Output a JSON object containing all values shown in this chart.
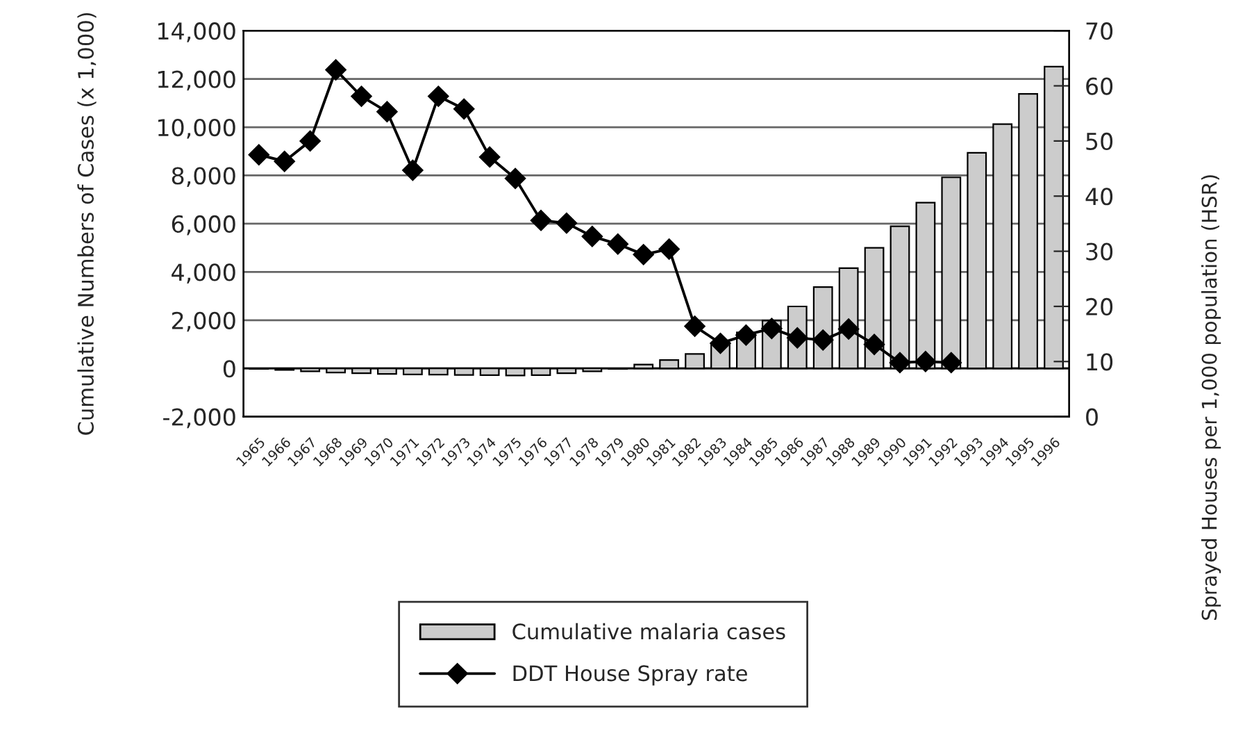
{
  "chart_data": {
    "type": "bar",
    "ylabel": "Cumulative Numbers of Cases (x 1,000)",
    "y2label": "Sprayed Houses per 1,000 population (HSR)",
    "categories": [
      "1965",
      "1966",
      "1967",
      "1968",
      "1969",
      "1970",
      "1971",
      "1972",
      "1973",
      "1974",
      "1975",
      "1976",
      "1977",
      "1978",
      "1979",
      "1980",
      "1981",
      "1982",
      "1983",
      "1984",
      "1985",
      "1986",
      "1987",
      "1988",
      "1989",
      "1990",
      "1991",
      "1992",
      "1993",
      "1994",
      "1995",
      "1996"
    ],
    "series": [
      {
        "name": "Cumulative malaria cases",
        "color": "#cccccc",
        "values": [
          -20,
          -60,
          -120,
          -170,
          -200,
          -230,
          -250,
          -260,
          -270,
          -280,
          -290,
          -280,
          -200,
          -120,
          -20,
          160,
          350,
          600,
          1000,
          1490,
          1980,
          2570,
          3370,
          4160,
          5000,
          5890,
          6870,
          7920,
          8940,
          10130,
          11380,
          12510
        ]
      },
      {
        "name": "DDT House Spray rate",
        "type": "line",
        "axis": "y2",
        "color": "#000000",
        "marker": "diamond",
        "line_style": "solid",
        "values": [
          47.5,
          46.3,
          50.0,
          62.9,
          58.1,
          55.3,
          44.7,
          58.1,
          55.8,
          47.1,
          43.2,
          35.6,
          35.1,
          32.7,
          31.3,
          29.4,
          30.4,
          16.4,
          13.3,
          14.8,
          16.0,
          14.3,
          13.9,
          15.9,
          13.1,
          9.8,
          10.0,
          9.8,
          null,
          null,
          null,
          null
        ]
      }
    ],
    "ylim": [
      -2000,
      14000
    ],
    "yticks": [
      {
        "value": -2000,
        "label": "-2,000"
      },
      0,
      {
        "value": 2000,
        "label": "2,000"
      },
      {
        "value": 4000,
        "label": "4,000"
      },
      {
        "value": 6000,
        "label": "6,000"
      },
      {
        "value": 8000,
        "label": "8,000"
      },
      {
        "value": 10000,
        "label": "10,000"
      },
      {
        "value": 12000,
        "label": "12,000"
      },
      {
        "value": 14000,
        "label": "14,000"
      }
    ],
    "y2lim": [
      0,
      70
    ],
    "y2ticks": [
      0,
      10,
      20,
      30,
      40,
      50,
      60,
      70
    ],
    "grid": "y",
    "legend": "bottom"
  }
}
